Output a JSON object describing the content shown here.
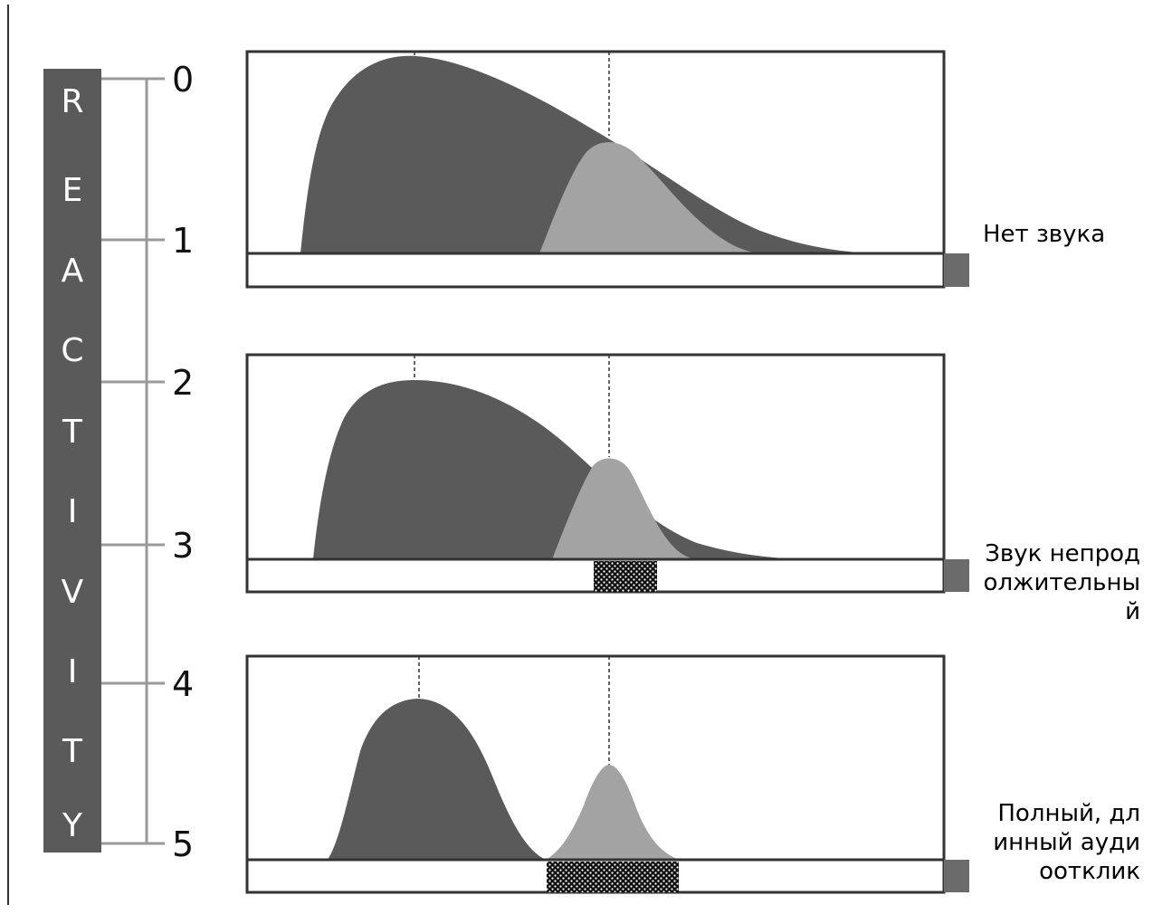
{
  "reactivity_bar": {
    "letters": [
      "R",
      "E",
      "A",
      "C",
      "T",
      "I",
      "V",
      "I",
      "T",
      "Y"
    ],
    "color": "#5a5a5a"
  },
  "scale": {
    "ticks": [
      "0",
      "1",
      "2",
      "3",
      "4",
      "5"
    ]
  },
  "panels": [
    {
      "caption": "Нет звука",
      "stimulus": false
    },
    {
      "caption": "Звук непродолжительный",
      "stimulus": true
    },
    {
      "caption": "Полный, длинный аудиоотклик",
      "stimulus": true
    }
  ],
  "colors": {
    "primary_wave": "#5a5a5a",
    "secondary_wave": "#a3a3a3",
    "frame": "#333333",
    "scale_line": "#9a9a9a",
    "marker": "#6b6b6b"
  }
}
